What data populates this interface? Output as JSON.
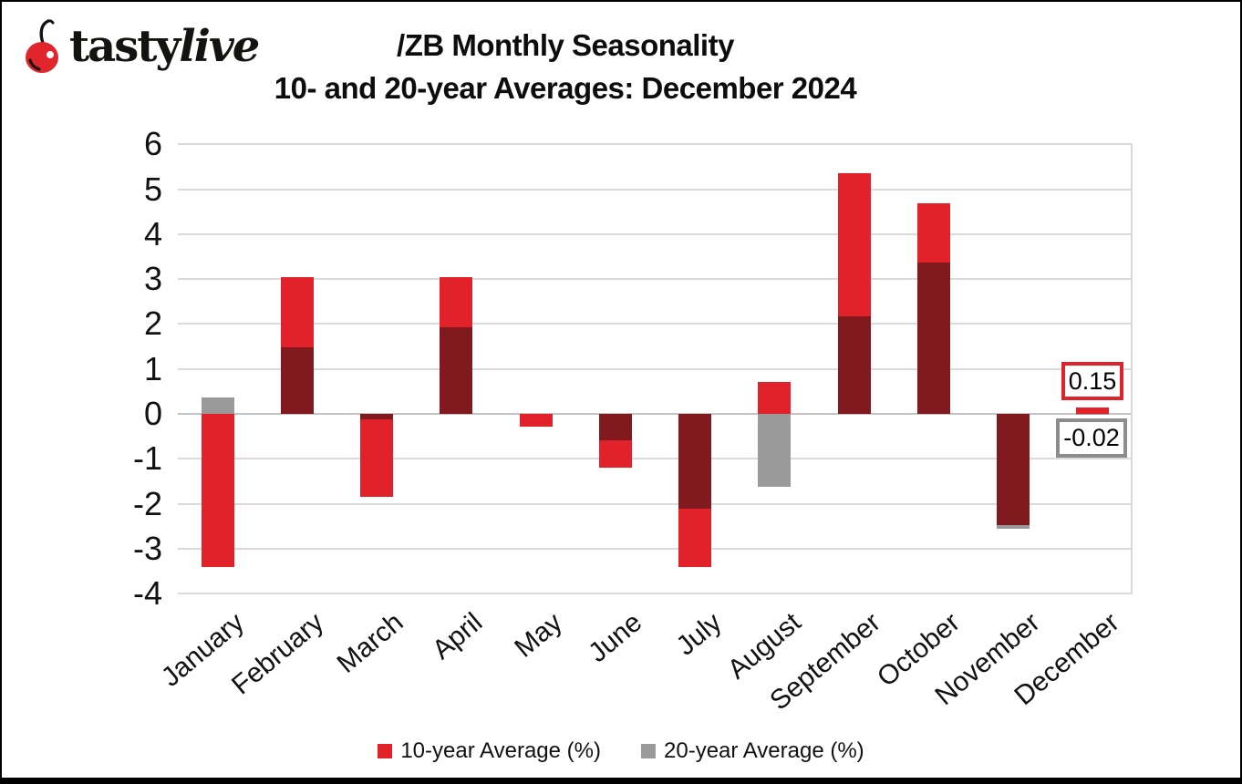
{
  "header": {
    "logo_text_regular": "tasty",
    "logo_text_italic": "live",
    "title_line1": "/ZB Monthly Seasonality",
    "title_line2": "10- and 20-year Averages: December 2024"
  },
  "colors": {
    "red": "#e2222b",
    "dark_red_overlap": "#811a1f",
    "gray": "#9a9a9a",
    "gridline": "#dadada",
    "zero_line": "#c3c3c3",
    "cherry_red": "#e0262c"
  },
  "chart_data": {
    "type": "bar",
    "title": "/ZB Monthly Seasonality 10- and 20-year Averages: December 2024",
    "categories": [
      "January",
      "February",
      "March",
      "April",
      "May",
      "June",
      "July",
      "August",
      "September",
      "October",
      "November",
      "December"
    ],
    "series": [
      {
        "name": "10-year Average (%)",
        "color_key": "red",
        "values": [
          -3.4,
          3.05,
          -1.84,
          3.05,
          -0.29,
          -1.2,
          -3.41,
          0.71,
          5.35,
          4.68,
          -2.48,
          0.15
        ]
      },
      {
        "name": "20-year Average (%)",
        "color_key": "gray",
        "values": [
          0.36,
          1.48,
          -0.12,
          1.93,
          0.0,
          -0.59,
          -2.11,
          -1.62,
          2.17,
          3.36,
          -2.55,
          -0.02
        ]
      }
    ],
    "overlap_note": "where both series share the same sign the overlapping portion renders dark red",
    "y_axis": {
      "min": -4,
      "max": 6,
      "step": 1,
      "tick_labels": [
        "6",
        "5",
        "4",
        "3",
        "2",
        "1",
        "0",
        "-1",
        "-2",
        "-3",
        "-4"
      ]
    },
    "grid": true,
    "legend_position": "bottom",
    "annotations": [
      {
        "month": "December",
        "series": "10-year Average (%)",
        "text": "0.15",
        "border_color_key": "red"
      },
      {
        "month": "December",
        "series": "20-year Average (%)",
        "text": "-0.02",
        "border_color_key": "gray"
      }
    ]
  },
  "legend": {
    "items": [
      {
        "label": "10-year Average (%)",
        "color_key": "red"
      },
      {
        "label": "20-year Average (%)",
        "color_key": "gray"
      }
    ]
  }
}
